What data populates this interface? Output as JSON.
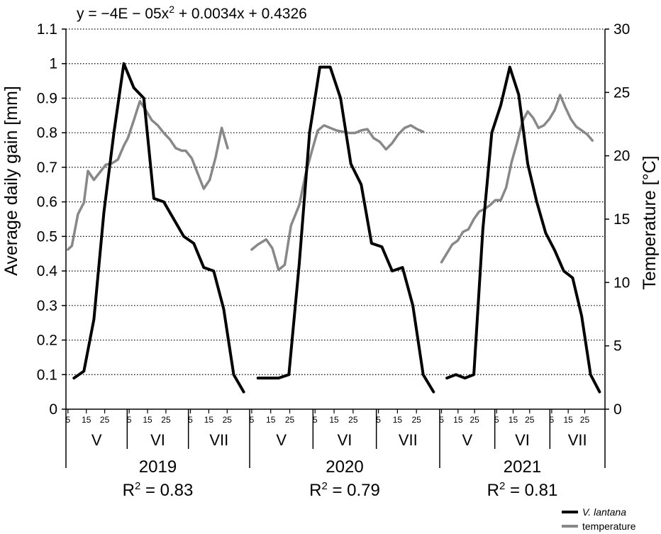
{
  "chart_data": {
    "type": "line",
    "equation": {
      "text": "y = −4E − 05x",
      "exp": "2",
      "rest": " + 0.0034x + 0.4326"
    },
    "ylabel_left": "Average daily gain [mm]",
    "ylabel_right": "Temperature [°C]",
    "y_left": {
      "lim": [
        0,
        1.1
      ],
      "ticks": [
        "0",
        "0.1",
        "0.2",
        "0.3",
        "0.4",
        "0.5",
        "0.6",
        "0.7",
        "0.8",
        "0.9",
        "1",
        "1.1"
      ]
    },
    "y_right": {
      "lim": [
        0,
        30
      ],
      "ticks": [
        "0",
        "5",
        "10",
        "15",
        "20",
        "25",
        "30"
      ]
    },
    "grid": "horizontal dotted",
    "day_ticks": [
      "5",
      "15",
      "25"
    ],
    "months": [
      "V",
      "VI",
      "VII"
    ],
    "years": [
      {
        "year": "2019",
        "r2_label": "R",
        "r2_exp": "2",
        "r2_value": " = 0.83",
        "series": [
          {
            "name": "V. lantana",
            "color": "#000000",
            "x": [
              4,
              9,
              14,
              19,
              24,
              29,
              34,
              39,
              44,
              49,
              54,
              59,
              64,
              69,
              74,
              79,
              84,
              89
            ],
            "y": [
              0.09,
              0.11,
              0.26,
              0.57,
              0.8,
              1.0,
              0.93,
              0.9,
              0.61,
              0.6,
              0.55,
              0.5,
              0.48,
              0.41,
              0.4,
              0.29,
              0.1,
              0.05
            ]
          },
          {
            "name": "temperature",
            "color": "#888888",
            "x": [
              1,
              3,
              6,
              9,
              11,
              14,
              17,
              20,
              23,
              26,
              29,
              31,
              34,
              37,
              40,
              43,
              46,
              49,
              52,
              55,
              58,
              60,
              63,
              66,
              69,
              72,
              75,
              78,
              81
            ],
            "y": [
              12.6,
              12.9,
              15.4,
              16.3,
              18.8,
              18.1,
              18.7,
              19.3,
              19.4,
              19.7,
              20.8,
              21.4,
              22.8,
              24.3,
              23.6,
              22.8,
              22.4,
              21.8,
              21.3,
              20.6,
              20.4,
              20.4,
              19.8,
              18.6,
              17.4,
              18.1,
              19.9,
              22.2,
              20.6
            ]
          }
        ]
      },
      {
        "year": "2020",
        "r2_label": "R",
        "r2_exp": "2",
        "r2_value": " = 0.79",
        "series": [
          {
            "name": "V. lantana",
            "color": "#000000",
            "x": [
              4,
              9,
              14,
              19,
              24,
              29,
              34,
              39,
              44,
              49,
              54,
              59,
              64,
              69,
              74,
              79,
              84,
              89
            ],
            "y": [
              0.09,
              0.09,
              0.09,
              0.1,
              0.42,
              0.8,
              0.99,
              0.99,
              0.9,
              0.71,
              0.65,
              0.48,
              0.47,
              0.4,
              0.41,
              0.3,
              0.1,
              0.05
            ]
          },
          {
            "name": "temperature",
            "color": "#888888",
            "x": [
              1,
              4,
              8,
              11,
              14,
              17,
              20,
              24,
              27,
              30,
              33,
              36,
              39,
              42,
              45,
              48,
              51,
              54,
              57,
              60,
              63,
              66,
              69,
              72,
              75,
              78,
              81,
              84
            ],
            "y": [
              12.6,
              13.0,
              13.4,
              12.7,
              11.0,
              11.4,
              14.5,
              16.1,
              18.5,
              20.3,
              22.0,
              22.4,
              22.2,
              22.0,
              21.9,
              21.8,
              21.8,
              22.0,
              22.1,
              21.4,
              21.1,
              20.5,
              21.0,
              21.7,
              22.2,
              22.4,
              22.1,
              21.9
            ]
          }
        ]
      },
      {
        "year": "2021",
        "r2_label": "R",
        "r2_exp": "2",
        "r2_value": " = 0.81",
        "series": [
          {
            "name": "V. lantana",
            "color": "#000000",
            "x": [
              4,
              9,
              14,
              19,
              24,
              29,
              34,
              39,
              44,
              49,
              54,
              59,
              64,
              69,
              74,
              79,
              84,
              89
            ],
            "y": [
              0.09,
              0.1,
              0.09,
              0.1,
              0.52,
              0.8,
              0.88,
              0.99,
              0.91,
              0.71,
              0.6,
              0.51,
              0.46,
              0.4,
              0.38,
              0.27,
              0.1,
              0.05
            ]
          },
          {
            "name": "temperature",
            "color": "#888888",
            "x": [
              1,
              4,
              7,
              10,
              13,
              16,
              19,
              22,
              25,
              28,
              31,
              34,
              37,
              40,
              43,
              46,
              49,
              52,
              55,
              58,
              61,
              64,
              67,
              70,
              73,
              76,
              79,
              82,
              85
            ],
            "y": [
              11.6,
              12.3,
              13.0,
              13.3,
              14.0,
              14.2,
              15.0,
              15.6,
              15.8,
              16.1,
              16.5,
              16.5,
              17.5,
              19.5,
              21.0,
              22.7,
              23.5,
              23.0,
              22.2,
              22.4,
              22.9,
              23.6,
              24.8,
              23.8,
              22.9,
              22.3,
              22.0,
              21.7,
              21.2
            ]
          }
        ]
      }
    ],
    "legend": {
      "placement": "bottom-right",
      "items": [
        {
          "label": "V. lantana",
          "color": "#000000",
          "italic": true
        },
        {
          "label": "temperature",
          "color": "#888888",
          "italic": false
        }
      ]
    }
  }
}
